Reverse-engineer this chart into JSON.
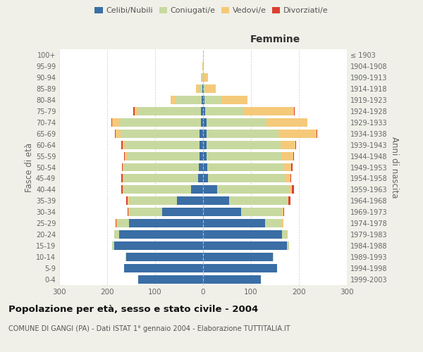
{
  "age_groups": [
    "0-4",
    "5-9",
    "10-14",
    "15-19",
    "20-24",
    "25-29",
    "30-34",
    "35-39",
    "40-44",
    "45-49",
    "50-54",
    "55-59",
    "60-64",
    "65-69",
    "70-74",
    "75-79",
    "80-84",
    "85-89",
    "90-94",
    "95-99",
    "100+"
  ],
  "birth_years": [
    "1999-2003",
    "1994-1998",
    "1989-1993",
    "1984-1988",
    "1979-1983",
    "1974-1978",
    "1969-1973",
    "1964-1968",
    "1959-1963",
    "1954-1958",
    "1949-1953",
    "1944-1948",
    "1939-1943",
    "1934-1938",
    "1929-1933",
    "1924-1928",
    "1919-1923",
    "1914-1918",
    "1909-1913",
    "1904-1908",
    "≤ 1903"
  ],
  "male": {
    "celibi": [
      135,
      165,
      160,
      185,
      175,
      155,
      85,
      55,
      25,
      10,
      9,
      8,
      8,
      7,
      5,
      5,
      3,
      1,
      0,
      0,
      0
    ],
    "coniugati": [
      0,
      0,
      2,
      5,
      10,
      25,
      70,
      100,
      140,
      155,
      155,
      150,
      155,
      165,
      170,
      130,
      55,
      8,
      2,
      0,
      0
    ],
    "vedovi": [
      0,
      0,
      0,
      0,
      0,
      1,
      1,
      2,
      2,
      3,
      3,
      5,
      5,
      10,
      15,
      8,
      10,
      5,
      3,
      1,
      0
    ],
    "divorziati": [
      0,
      0,
      0,
      0,
      1,
      1,
      2,
      3,
      3,
      3,
      2,
      2,
      2,
      2,
      1,
      2,
      0,
      0,
      0,
      0,
      0
    ]
  },
  "female": {
    "nubili": [
      120,
      155,
      145,
      175,
      165,
      130,
      80,
      55,
      30,
      10,
      9,
      8,
      7,
      7,
      7,
      5,
      3,
      1,
      0,
      0,
      0
    ],
    "coniugate": [
      0,
      0,
      2,
      5,
      10,
      35,
      85,
      120,
      150,
      160,
      160,
      155,
      155,
      150,
      125,
      80,
      35,
      5,
      2,
      0,
      0
    ],
    "vedove": [
      0,
      0,
      0,
      0,
      1,
      2,
      2,
      3,
      5,
      12,
      15,
      25,
      30,
      80,
      85,
      105,
      55,
      20,
      8,
      2,
      0
    ],
    "divorziate": [
      0,
      0,
      0,
      0,
      1,
      1,
      2,
      5,
      4,
      2,
      3,
      2,
      2,
      1,
      1,
      1,
      0,
      0,
      0,
      0,
      0
    ]
  },
  "colors": {
    "celibi": "#3A6EA5",
    "coniugati": "#C8D9A0",
    "vedovi": "#F5C97A",
    "divorziati": "#D94030"
  },
  "xlim": 300,
  "title": "Popolazione per età, sesso e stato civile - 2004",
  "subtitle": "COMUNE DI GANGI (PA) - Dati ISTAT 1° gennaio 2004 - Elaborazione TUTTITALIA.IT",
  "ylabel_left": "Fasce di età",
  "ylabel_right": "Anni di nascita",
  "xlabel_right": "Femmine",
  "background_color": "#f0f0e8",
  "plot_bg_color": "#ffffff"
}
